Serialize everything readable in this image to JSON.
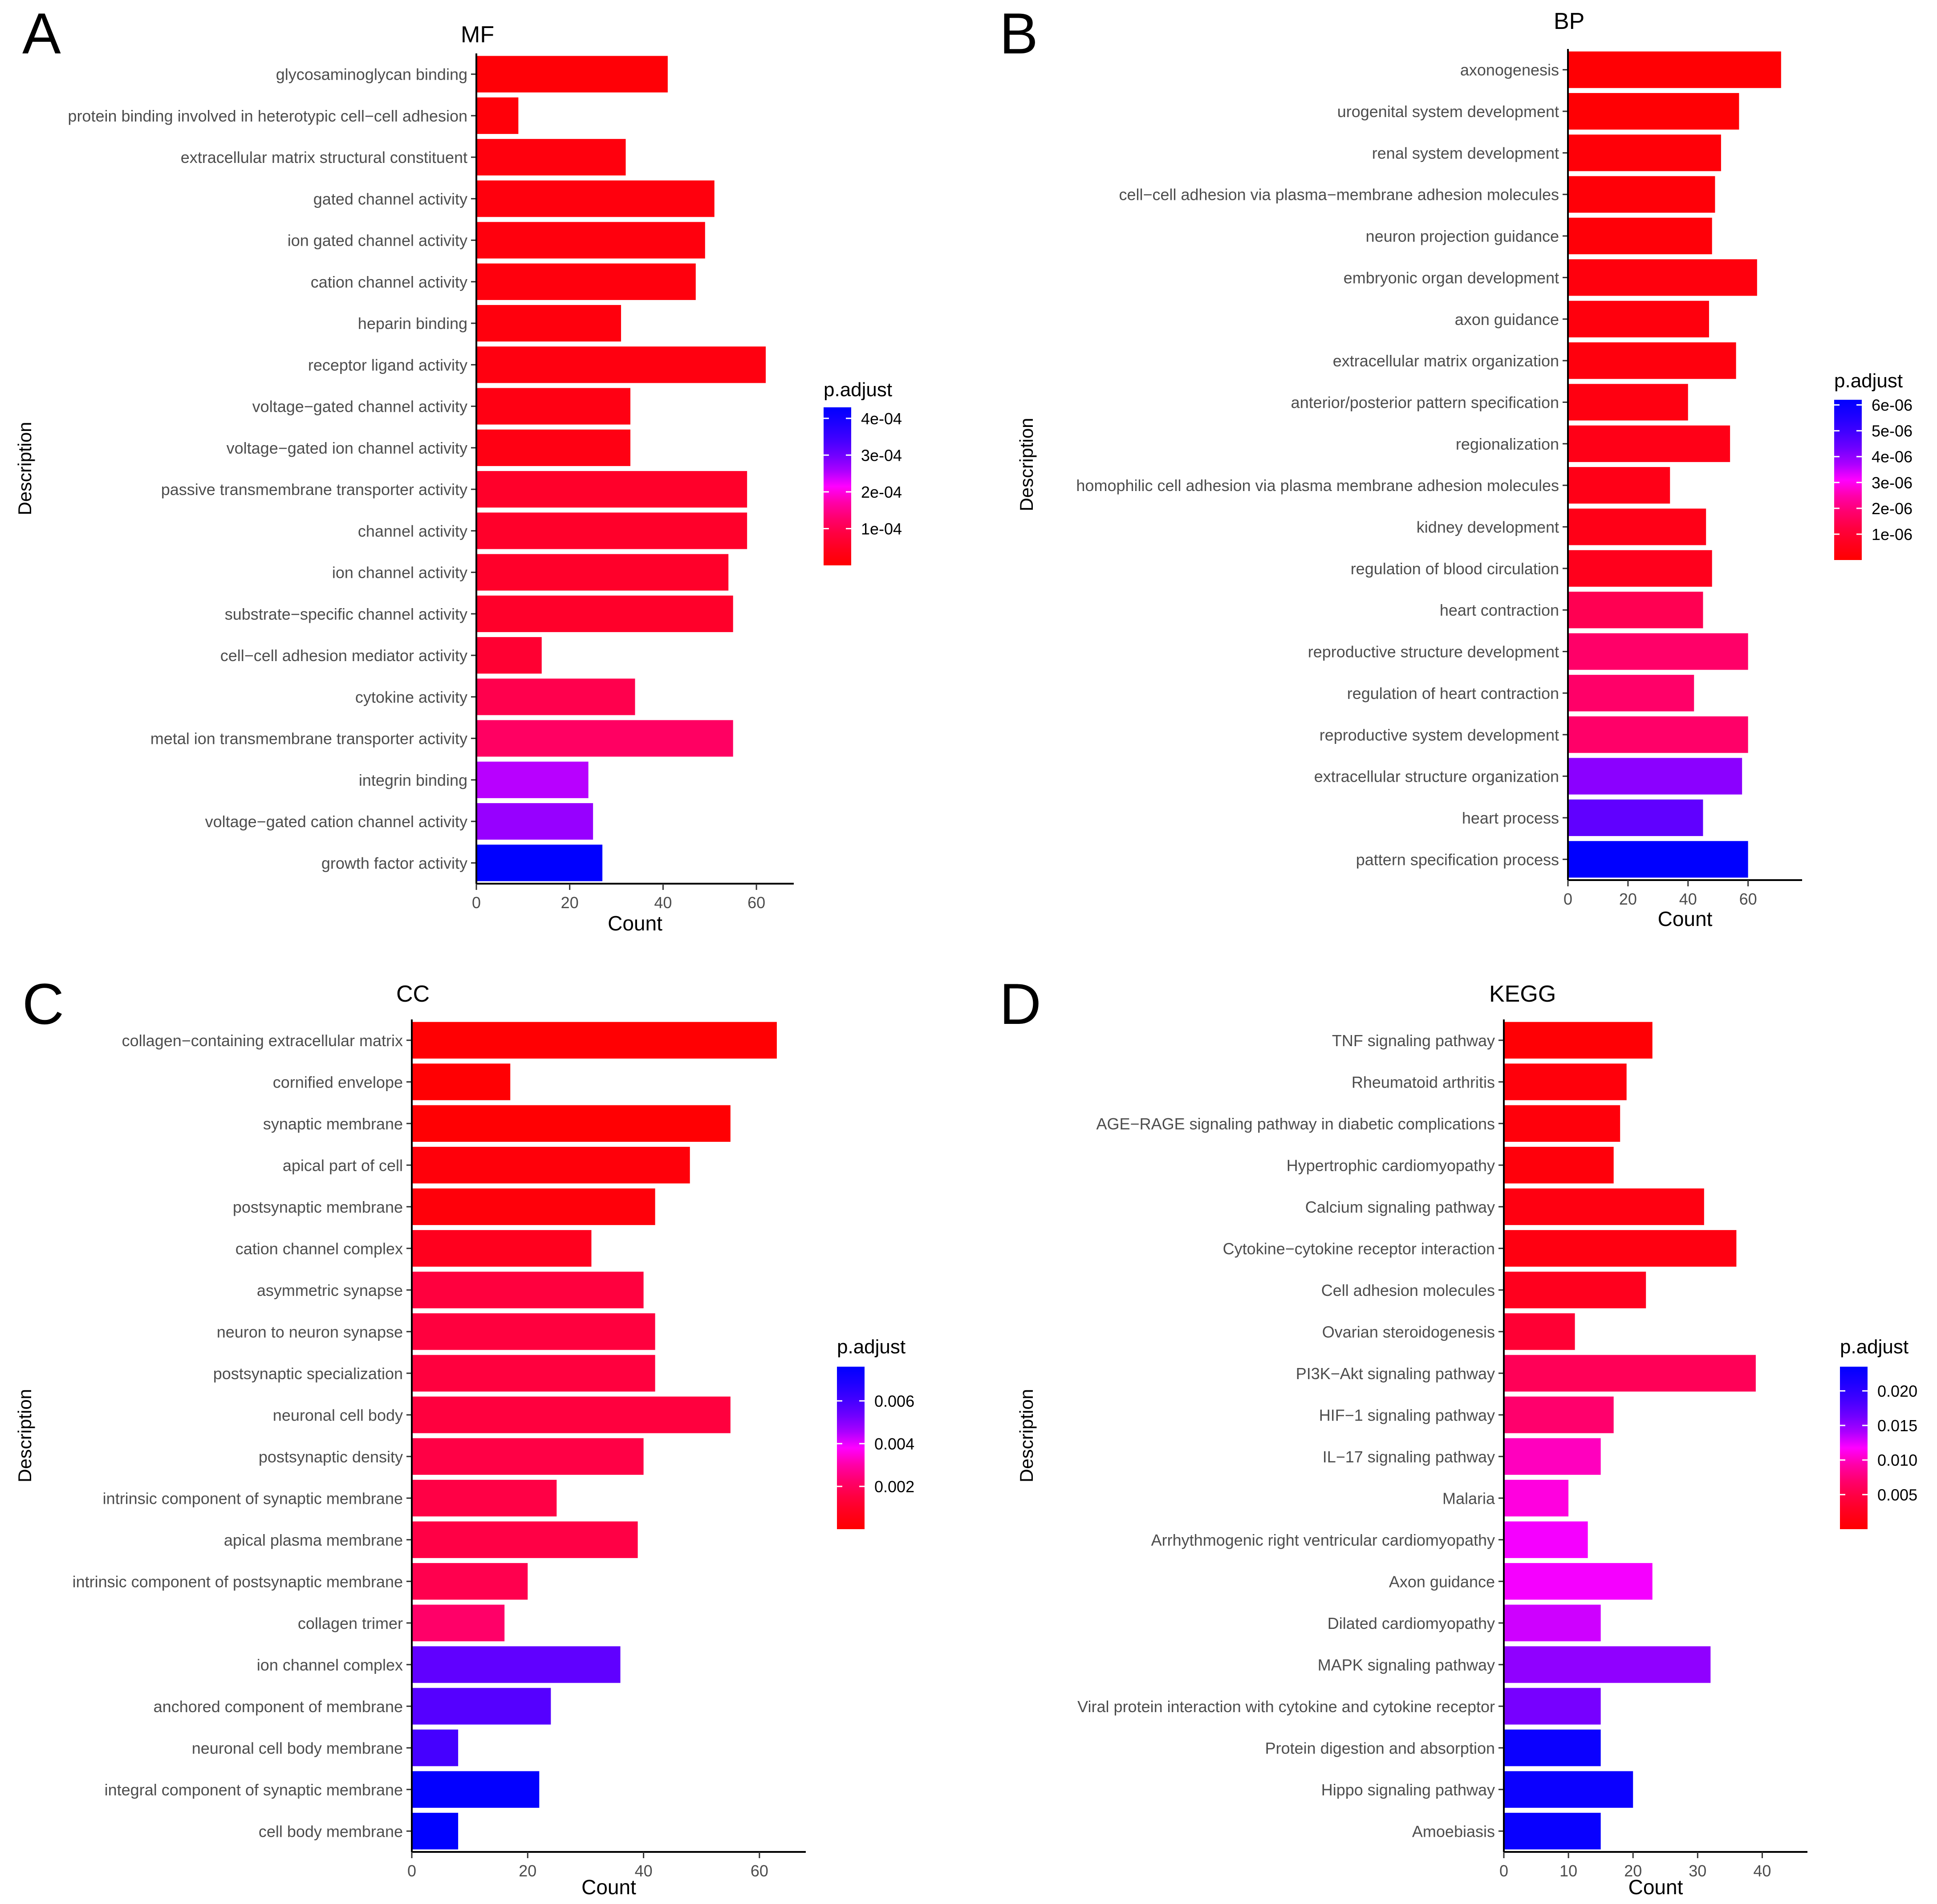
{
  "figure": {
    "panels": [
      "A",
      "B",
      "C",
      "D"
    ]
  },
  "chart_data": [
    {
      "panel_letter": "A",
      "type": "bar",
      "orientation": "horizontal",
      "title": "MF",
      "xlabel": "Count",
      "ylabel": "Description",
      "xlim": [
        0,
        68
      ],
      "xticks": [
        "0",
        "20",
        "40",
        "60"
      ],
      "xtick_values": [
        0,
        20,
        40,
        60
      ],
      "legend": {
        "title": "p.adjust",
        "placement": "right",
        "min": 0,
        "max": 0.00043,
        "ticks": [
          "4e-04",
          "3e-04",
          "2e-04",
          "1e-04"
        ],
        "tick_values": [
          0.0004,
          0.0003,
          0.0002,
          0.0001
        ],
        "low_color": "#ff0000",
        "high_color": "#0000ff"
      },
      "categories": [
        "glycosaminoglycan binding",
        "protein binding involved in heterotypic cell−cell adhesion",
        "extracellular matrix structural constituent",
        "gated channel activity",
        "ion gated channel activity",
        "cation channel activity",
        "heparin binding",
        "receptor ligand activity",
        "voltage−gated channel activity",
        "voltage−gated ion channel activity",
        "passive transmembrane transporter activity",
        "channel activity",
        "ion channel activity",
        "substrate−specific channel activity",
        "cell−cell adhesion mediator activity",
        "cytokine activity",
        "metal ion transmembrane transporter activity",
        "integrin binding",
        "voltage−gated cation channel activity",
        "growth factor activity"
      ],
      "values": [
        41,
        9,
        32,
        51,
        49,
        47,
        31,
        62,
        33,
        33,
        58,
        58,
        54,
        55,
        14,
        34,
        55,
        24,
        25,
        27
      ],
      "p_adjust": [
        1e-05,
        1.5e-05,
        2e-05,
        2e-05,
        2e-05,
        2e-05,
        2e-05,
        2.5e-05,
        3e-05,
        3e-05,
        6e-05,
        6e-05,
        6e-05,
        6e-05,
        7e-05,
        0.0001,
        0.00012,
        0.00025,
        0.00027,
        0.00043
      ]
    },
    {
      "panel_letter": "B",
      "type": "bar",
      "orientation": "horizontal",
      "title": "BP",
      "xlabel": "Count",
      "ylabel": "Description",
      "xlim": [
        0,
        78
      ],
      "xticks": [
        "0",
        "20",
        "40",
        "60"
      ],
      "xtick_values": [
        0,
        20,
        40,
        60
      ],
      "legend": {
        "title": "p.adjust",
        "placement": "right",
        "min": 0,
        "max": 6.2e-06,
        "ticks": [
          "6e-06",
          "5e-06",
          "4e-06",
          "3e-06",
          "2e-06",
          "1e-06"
        ],
        "tick_values": [
          6e-06,
          5e-06,
          4e-06,
          3e-06,
          2e-06,
          1e-06
        ],
        "low_color": "#ff0000",
        "high_color": "#0000ff"
      },
      "categories": [
        "axonogenesis",
        "urogenital system development",
        "renal system development",
        "cell−cell adhesion via plasma−membrane adhesion molecules",
        "neuron projection guidance",
        "embryonic organ development",
        "axon guidance",
        "extracellular matrix organization",
        "anterior/posterior pattern specification",
        "regionalization",
        "homophilic cell adhesion via plasma membrane adhesion molecules",
        "kidney development",
        "regulation of blood circulation",
        "heart contraction",
        "reproductive structure development",
        "regulation of heart contraction",
        "reproductive system development",
        "extracellular structure organization",
        "heart process",
        "pattern specification process"
      ],
      "values": [
        71,
        57,
        51,
        49,
        48,
        63,
        47,
        56,
        40,
        54,
        34,
        46,
        48,
        45,
        60,
        42,
        60,
        58,
        45,
        60
      ],
      "p_adjust": [
        1e-07,
        1e-07,
        2e-07,
        2e-07,
        2e-07,
        3e-07,
        3e-07,
        3e-07,
        4e-07,
        5e-07,
        5e-07,
        5e-07,
        6e-07,
        1.5e-06,
        1.8e-06,
        1.8e-06,
        1.8e-06,
        4e-06,
        4.5e-06,
        6.2e-06
      ]
    },
    {
      "panel_letter": "C",
      "type": "bar",
      "orientation": "horizontal",
      "title": "CC",
      "xlabel": "Count",
      "ylabel": "Description",
      "xlim": [
        0,
        68
      ],
      "xticks": [
        "0",
        "20",
        "40",
        "60"
      ],
      "xtick_values": [
        0,
        20,
        40,
        60
      ],
      "legend": {
        "title": "p.adjust",
        "placement": "right",
        "min": 0,
        "max": 0.0076,
        "ticks": [
          "0.006",
          "0.004",
          "0.002"
        ],
        "tick_values": [
          0.006,
          0.004,
          0.002
        ],
        "low_color": "#ff0000",
        "high_color": "#0000ff"
      },
      "categories": [
        "collagen−containing extracellular matrix",
        "cornified envelope",
        "synaptic membrane",
        "apical part of cell",
        "postsynaptic membrane",
        "cation channel complex",
        "asymmetric synapse",
        "neuron to neuron synapse",
        "postsynaptic specialization",
        "neuronal cell body",
        "postsynaptic density",
        "intrinsic component of synaptic membrane",
        "apical plasma membrane",
        "intrinsic component of postsynaptic membrane",
        "collagen trimer",
        "ion channel complex",
        "anchored component of membrane",
        "neuronal cell body membrane",
        "integral component of synaptic membrane",
        "cell body membrane"
      ],
      "values": [
        63,
        17,
        55,
        48,
        42,
        31,
        40,
        42,
        42,
        55,
        40,
        25,
        39,
        20,
        16,
        36,
        24,
        8,
        22,
        8
      ],
      "p_adjust": [
        0.0001,
        0.0001,
        0.0001,
        0.0003,
        0.0003,
        0.0008,
        0.0015,
        0.0015,
        0.0015,
        0.0015,
        0.0016,
        0.0016,
        0.0016,
        0.0018,
        0.0022,
        0.0055,
        0.0057,
        0.006,
        0.0075,
        0.0076
      ]
    },
    {
      "panel_letter": "D",
      "type": "bar",
      "orientation": "horizontal",
      "title": "KEGG",
      "xlabel": "Count",
      "ylabel": "Description",
      "xlim": [
        0,
        47
      ],
      "xticks": [
        "0",
        "10",
        "20",
        "30",
        "40"
      ],
      "xtick_values": [
        0,
        10,
        20,
        30,
        40
      ],
      "legend": {
        "title": "p.adjust",
        "placement": "right",
        "min": 0,
        "max": 0.0235,
        "ticks": [
          "0.020",
          "0.015",
          "0.010",
          "0.005"
        ],
        "tick_values": [
          0.02,
          0.015,
          0.01,
          0.005
        ],
        "low_color": "#ff0000",
        "high_color": "#0000ff"
      },
      "categories": [
        "TNF signaling pathway",
        "Rheumatoid arthritis",
        "AGE−RAGE signaling pathway in diabetic complications",
        "Hypertrophic cardiomyopathy",
        "Calcium signaling pathway",
        "Cytokine−cytokine receptor interaction",
        "Cell adhesion molecules",
        "Ovarian steroidogenesis",
        "PI3K−Akt signaling pathway",
        "HIF−1 signaling pathway",
        "IL−17 signaling pathway",
        "Malaria",
        "Arrhythmogenic right ventricular cardiomyopathy",
        "Axon guidance",
        "Dilated cardiomyopathy",
        "MAPK signaling pathway",
        "Viral protein interaction with cytokine and cytokine receptor",
        "Protein digestion and absorption",
        "Hippo signaling pathway",
        "Amoebiasis"
      ],
      "values": [
        23,
        19,
        18,
        17,
        31,
        36,
        22,
        11,
        39,
        17,
        15,
        10,
        13,
        23,
        15,
        32,
        15,
        15,
        20,
        15
      ],
      "p_adjust": [
        0.0005,
        0.001,
        0.001,
        0.001,
        0.0015,
        0.0015,
        0.0025,
        0.004,
        0.006,
        0.007,
        0.01,
        0.011,
        0.012,
        0.012,
        0.013,
        0.015,
        0.016,
        0.0225,
        0.0225,
        0.0228
      ]
    }
  ]
}
